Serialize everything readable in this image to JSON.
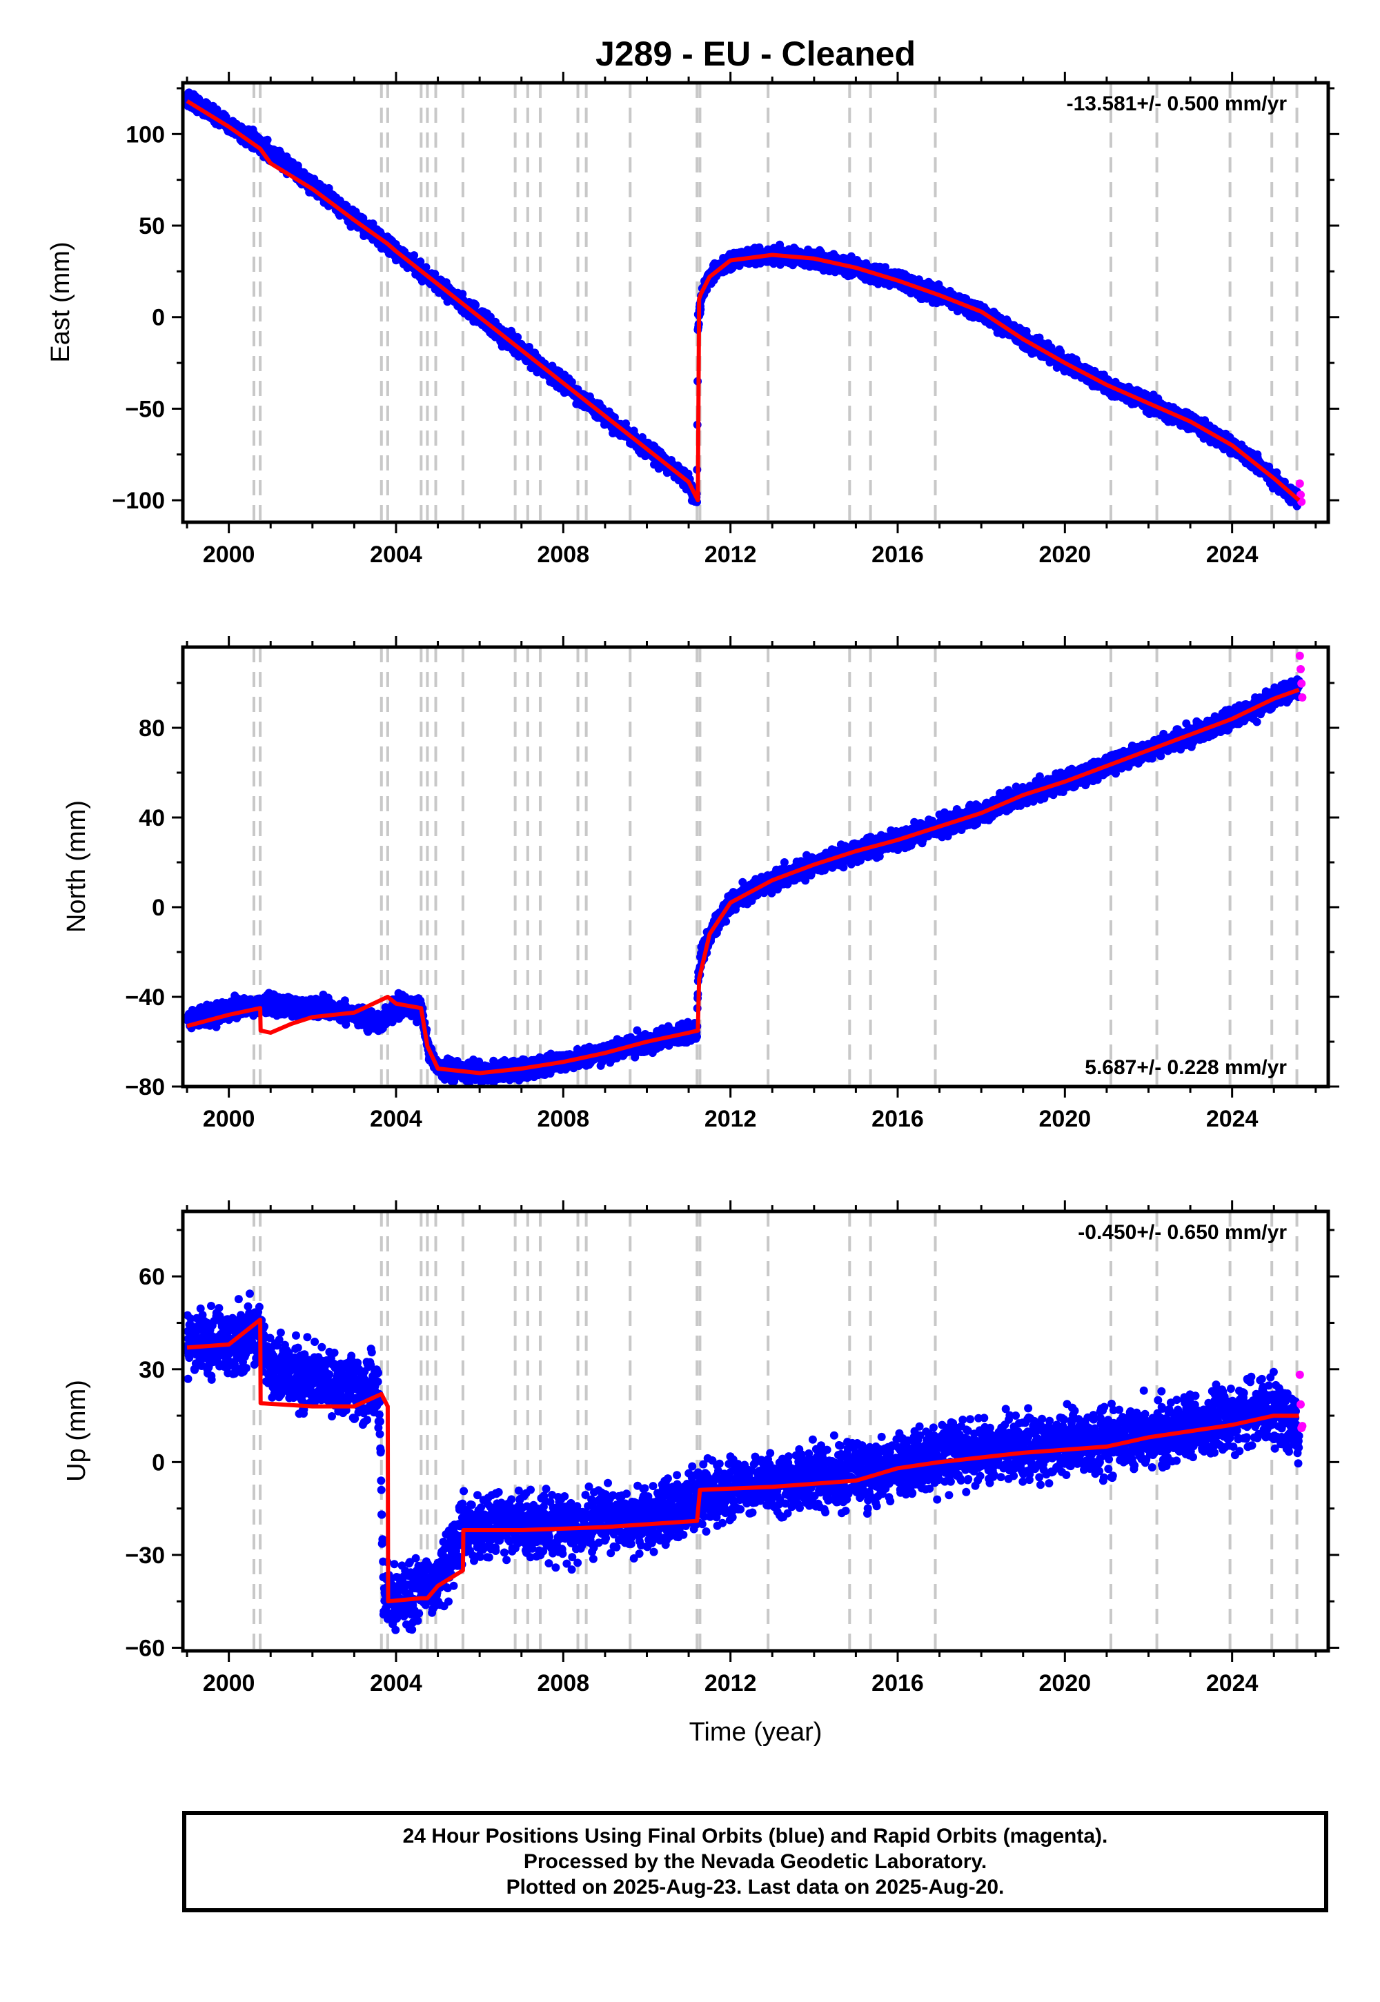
{
  "title": "J289  - EU - Cleaned",
  "colors": {
    "final_orbits": "#0000ff",
    "rapid_orbits": "#ff00ff",
    "model": "#ff0000",
    "steps": "#c8c8c8",
    "frame": "#000000"
  },
  "xaxis": {
    "label": "Time (year)",
    "range": [
      1998.9,
      2026.3
    ],
    "ticks": [
      2000,
      2004,
      2008,
      2012,
      2016,
      2020,
      2024
    ],
    "tick_labels": [
      "2000",
      "2004",
      "2008",
      "2012",
      "2016",
      "2020",
      "2024"
    ],
    "minor_tick_step": 1
  },
  "footer": {
    "line1": "24 Hour Positions Using Final Orbits (blue) and Rapid Orbits (magenta).",
    "line2": "Processed by the Nevada Geodetic Laboratory.",
    "line3": "Plotted on 2025-Aug-23. Last data on 2025-Aug-20."
  },
  "chart_data": [
    {
      "type": "scatter",
      "component": "east",
      "ylabel": "East (mm)",
      "ylim": [
        -112,
        128
      ],
      "yticks": [
        100,
        50,
        0,
        -50,
        -100
      ],
      "ytick_labels": [
        "100",
        "50",
        "0",
        "−50",
        "−100"
      ],
      "velocity": "-13.581+/- 0.500 mm/yr",
      "velocity_position": "top-right",
      "steps_years": [
        2000.6,
        2000.75,
        2003.65,
        2003.8,
        2004.6,
        2004.75,
        2004.95,
        2005.6,
        2006.85,
        2007.15,
        2007.45,
        2008.35,
        2008.55,
        2009.6,
        2011.2,
        2011.27,
        2012.9,
        2014.85,
        2015.35,
        2016.9,
        2021.1,
        2022.2,
        2023.95,
        2024.95,
        2025.55
      ],
      "series": [
        {
          "name": "Final Orbits",
          "x": [
            1999.0,
            2000.0,
            2001.0,
            2002.0,
            2003.0,
            2004.0,
            2005.0,
            2006.0,
            2007.0,
            2008.0,
            2009.0,
            2010.0,
            2011.0,
            2011.2,
            2011.22,
            2011.3,
            2011.5,
            2012.0,
            2013.0,
            2014.0,
            2015.0,
            2016.0,
            2017.0,
            2018.0,
            2019.0,
            2020.0,
            2021.0,
            2022.0,
            2023.0,
            2024.0,
            2025.0,
            2025.6
          ],
          "y": [
            120,
            105,
            90,
            72,
            54,
            36,
            18,
            0,
            -18,
            -36,
            -54,
            -72,
            -90,
            -100,
            -5,
            12,
            22,
            31,
            34,
            32,
            27,
            20,
            12,
            3,
            -12,
            -25,
            -37,
            -47,
            -57,
            -70,
            -88,
            -101
          ],
          "spread": 3
        },
        {
          "name": "Rapid Orbits",
          "x": [
            2025.62,
            2025.64,
            2025.66
          ],
          "y": [
            -92,
            -97,
            -100
          ],
          "spread": 3
        },
        {
          "name": "Model",
          "x": [
            1999.0,
            2000.0,
            2000.75,
            2001.0,
            2002.0,
            2003.0,
            2003.8,
            2004.0,
            2005.0,
            2006.0,
            2007.0,
            2008.0,
            2009.0,
            2010.0,
            2011.0,
            2011.22,
            2011.25,
            2011.3,
            2011.5,
            2012.0,
            2013.0,
            2014.0,
            2015.0,
            2016.0,
            2017.0,
            2018.0,
            2019.0,
            2020.0,
            2021.0,
            2022.0,
            2023.0,
            2024.0,
            2025.0,
            2025.6
          ],
          "y": [
            118,
            104,
            92,
            84,
            70,
            53,
            40,
            36,
            18,
            0,
            -18,
            -36,
            -54,
            -72,
            -90,
            -100,
            10,
            13,
            22,
            31,
            34,
            32,
            27,
            20,
            12,
            3,
            -12,
            -25,
            -37,
            -47,
            -57,
            -70,
            -88,
            -100
          ]
        }
      ]
    },
    {
      "type": "scatter",
      "component": "north",
      "ylabel": "North (mm)",
      "ylim": [
        -80,
        116
      ],
      "yticks": [
        80,
        40,
        0,
        -40,
        -80
      ],
      "ytick_labels": [
        "80",
        "40",
        "0",
        "−40",
        "−80"
      ],
      "velocity": "5.687+/- 0.228 mm/yr",
      "velocity_position": "bottom-right",
      "steps_years": [
        2000.6,
        2000.75,
        2003.65,
        2003.8,
        2004.6,
        2004.75,
        2004.95,
        2005.6,
        2006.85,
        2007.15,
        2007.45,
        2008.35,
        2008.55,
        2009.6,
        2011.2,
        2011.27,
        2012.9,
        2014.85,
        2015.35,
        2016.9,
        2021.1,
        2022.2,
        2023.95,
        2024.95,
        2025.55
      ],
      "series": [
        {
          "name": "Final Orbits",
          "x": [
            1999.0,
            2000.0,
            2001.0,
            2002.0,
            2003.0,
            2003.6,
            2004.0,
            2004.6,
            2004.8,
            2005.0,
            2006.0,
            2007.0,
            2008.0,
            2009.0,
            2010.0,
            2011.0,
            2011.2,
            2011.22,
            2011.3,
            2011.5,
            2012.0,
            2013.0,
            2014.0,
            2015.0,
            2016.0,
            2017.0,
            2018.0,
            2019.0,
            2020.0,
            2021.0,
            2022.0,
            2023.0,
            2024.0,
            2025.0,
            2025.6
          ],
          "y": [
            -50,
            -46,
            -43,
            -45,
            -47,
            -52,
            -44,
            -45,
            -65,
            -72,
            -74,
            -72,
            -69,
            -65,
            -60,
            -56,
            -55,
            -35,
            -22,
            -12,
            2,
            12,
            19,
            25,
            30,
            36,
            42,
            50,
            56,
            63,
            70,
            77,
            84,
            93,
            99
          ],
          "spread": 3
        },
        {
          "name": "Rapid Orbits",
          "x": [
            2025.62,
            2025.64,
            2025.66,
            2025.68
          ],
          "y": [
            112,
            106,
            100,
            94
          ],
          "spread": 2
        },
        {
          "name": "Model",
          "x": [
            1999.0,
            2000.0,
            2000.75,
            2000.76,
            2001.0,
            2001.5,
            2002.0,
            2003.0,
            2003.8,
            2004.0,
            2004.6,
            2004.75,
            2005.0,
            2006.0,
            2007.0,
            2008.0,
            2009.0,
            2010.0,
            2011.0,
            2011.22,
            2011.25,
            2011.5,
            2012.0,
            2013.0,
            2014.0,
            2015.0,
            2016.0,
            2017.0,
            2018.0,
            2019.0,
            2020.0,
            2021.0,
            2022.0,
            2023.0,
            2024.0,
            2025.0,
            2025.6
          ],
          "y": [
            -53,
            -48,
            -45,
            -55,
            -56,
            -52,
            -49,
            -47,
            -40,
            -43,
            -45,
            -62,
            -72,
            -74,
            -72,
            -69,
            -65,
            -60,
            -56,
            -55,
            -32,
            -12,
            2,
            12,
            19,
            25,
            30,
            36,
            42,
            50,
            56,
            63,
            70,
            77,
            84,
            93,
            97
          ]
        }
      ]
    },
    {
      "type": "scatter",
      "component": "up",
      "ylabel": "Up (mm)",
      "ylim": [
        -61,
        81
      ],
      "yticks": [
        60,
        30,
        0,
        -30,
        -60
      ],
      "ytick_labels": [
        "60",
        "30",
        "0",
        "−30",
        "−60"
      ],
      "velocity": "-0.450+/- 0.650 mm/yr",
      "velocity_position": "top-right",
      "steps_years": [
        2000.6,
        2000.75,
        2003.65,
        2003.8,
        2004.6,
        2004.75,
        2004.95,
        2005.6,
        2006.85,
        2007.15,
        2007.45,
        2008.35,
        2008.55,
        2009.6,
        2011.2,
        2011.27,
        2012.9,
        2014.85,
        2015.35,
        2016.9,
        2021.1,
        2022.2,
        2023.95,
        2024.95,
        2025.55
      ],
      "series": [
        {
          "name": "Final Orbits",
          "x": [
            1999.0,
            2000.0,
            2000.7,
            2001.0,
            2002.0,
            2003.0,
            2003.6,
            2003.7,
            2004.0,
            2004.9,
            2005.0,
            2005.6,
            2006.0,
            2007.0,
            2008.0,
            2009.0,
            2010.0,
            2011.2,
            2012.0,
            2013.0,
            2014.0,
            2015.0,
            2016.0,
            2017.0,
            2018.0,
            2019.0,
            2020.0,
            2021.0,
            2022.0,
            2023.0,
            2024.0,
            2025.0,
            2025.6
          ],
          "y": [
            40,
            38,
            42,
            30,
            27,
            24,
            22,
            -42,
            -44,
            -40,
            -38,
            -22,
            -22,
            -21,
            -21,
            -19,
            -18,
            -12,
            -10,
            -7,
            -5,
            -3,
            -1,
            1,
            3,
            5,
            6,
            7,
            9,
            11,
            14,
            17,
            10
          ],
          "spread": 7
        },
        {
          "name": "Rapid Orbits",
          "x": [
            2025.62,
            2025.64,
            2025.66,
            2025.68
          ],
          "y": [
            27,
            20,
            14,
            10
          ],
          "spread": 2
        },
        {
          "name": "Model",
          "x": [
            1999.0,
            2000.0,
            2000.75,
            2000.76,
            2002.0,
            2003.0,
            2003.65,
            2003.8,
            2003.81,
            2004.6,
            2004.75,
            2005.0,
            2005.6,
            2005.61,
            2007.0,
            2009.0,
            2011.2,
            2011.27,
            2013.0,
            2015.0,
            2016.0,
            2017.0,
            2019.0,
            2021.0,
            2022.0,
            2024.0,
            2025.0,
            2025.6
          ],
          "y": [
            37,
            38,
            46,
            19,
            18,
            18,
            22,
            18,
            -45,
            -44,
            -44,
            -40,
            -35,
            -22,
            -22,
            -21,
            -19,
            -9,
            -8,
            -6,
            -2,
            0,
            3,
            5,
            8,
            12,
            15,
            15
          ]
        }
      ]
    }
  ]
}
